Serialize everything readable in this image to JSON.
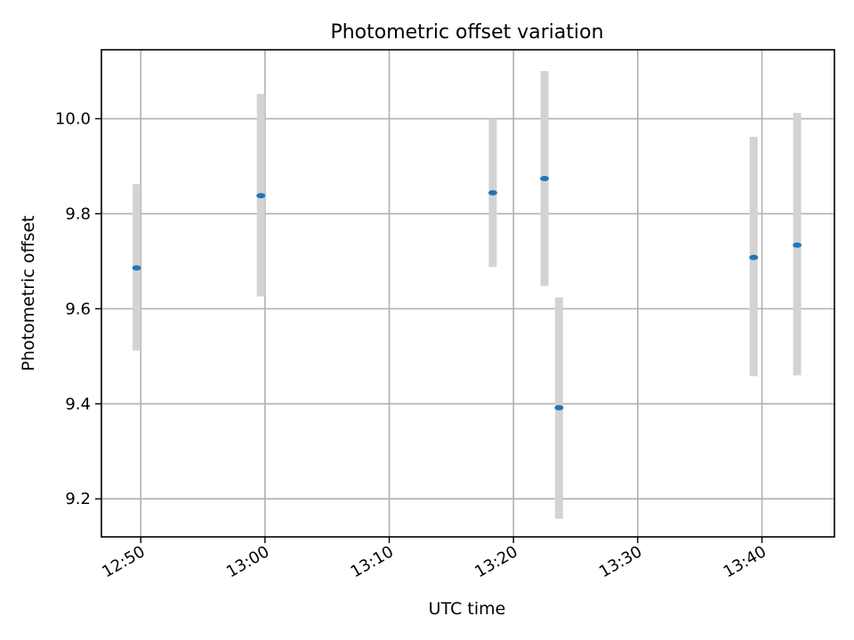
{
  "chart_data": {
    "type": "scatter",
    "title": "Photometric offset variation",
    "xlabel": "UTC time",
    "ylabel": "Photometric offset",
    "x_axis": "time",
    "xlim": [
      "12:46:50",
      "13:45:50"
    ],
    "ylim": [
      9.12,
      10.145
    ],
    "x_ticks": [
      "12:50",
      "13:00",
      "13:10",
      "13:20",
      "13:30",
      "13:40"
    ],
    "y_ticks": [
      9.2,
      9.4,
      9.6,
      9.8,
      10.0
    ],
    "y_tick_labels": [
      "9.2",
      "9.4",
      "9.6",
      "9.8",
      "10.0"
    ],
    "grid": true,
    "errorbar_color": "#d3d3d3",
    "marker_color": "#1f77b4",
    "series": [
      {
        "points": [
          {
            "x": "12:49:40",
            "y": 9.686,
            "err_low": 9.512,
            "err_high": 9.862
          },
          {
            "x": "12:59:40",
            "y": 9.838,
            "err_low": 9.626,
            "err_high": 10.052
          },
          {
            "x": "13:18:20",
            "y": 9.844,
            "err_low": 9.688,
            "err_high": 10.0
          },
          {
            "x": "13:22:30",
            "y": 9.874,
            "err_low": 9.648,
            "err_high": 10.1
          },
          {
            "x": "13:23:40",
            "y": 9.392,
            "err_low": 9.158,
            "err_high": 9.624
          },
          {
            "x": "13:39:20",
            "y": 9.708,
            "err_low": 9.458,
            "err_high": 9.962
          },
          {
            "x": "13:42:50",
            "y": 9.734,
            "err_low": 9.46,
            "err_high": 10.012
          }
        ]
      }
    ]
  }
}
